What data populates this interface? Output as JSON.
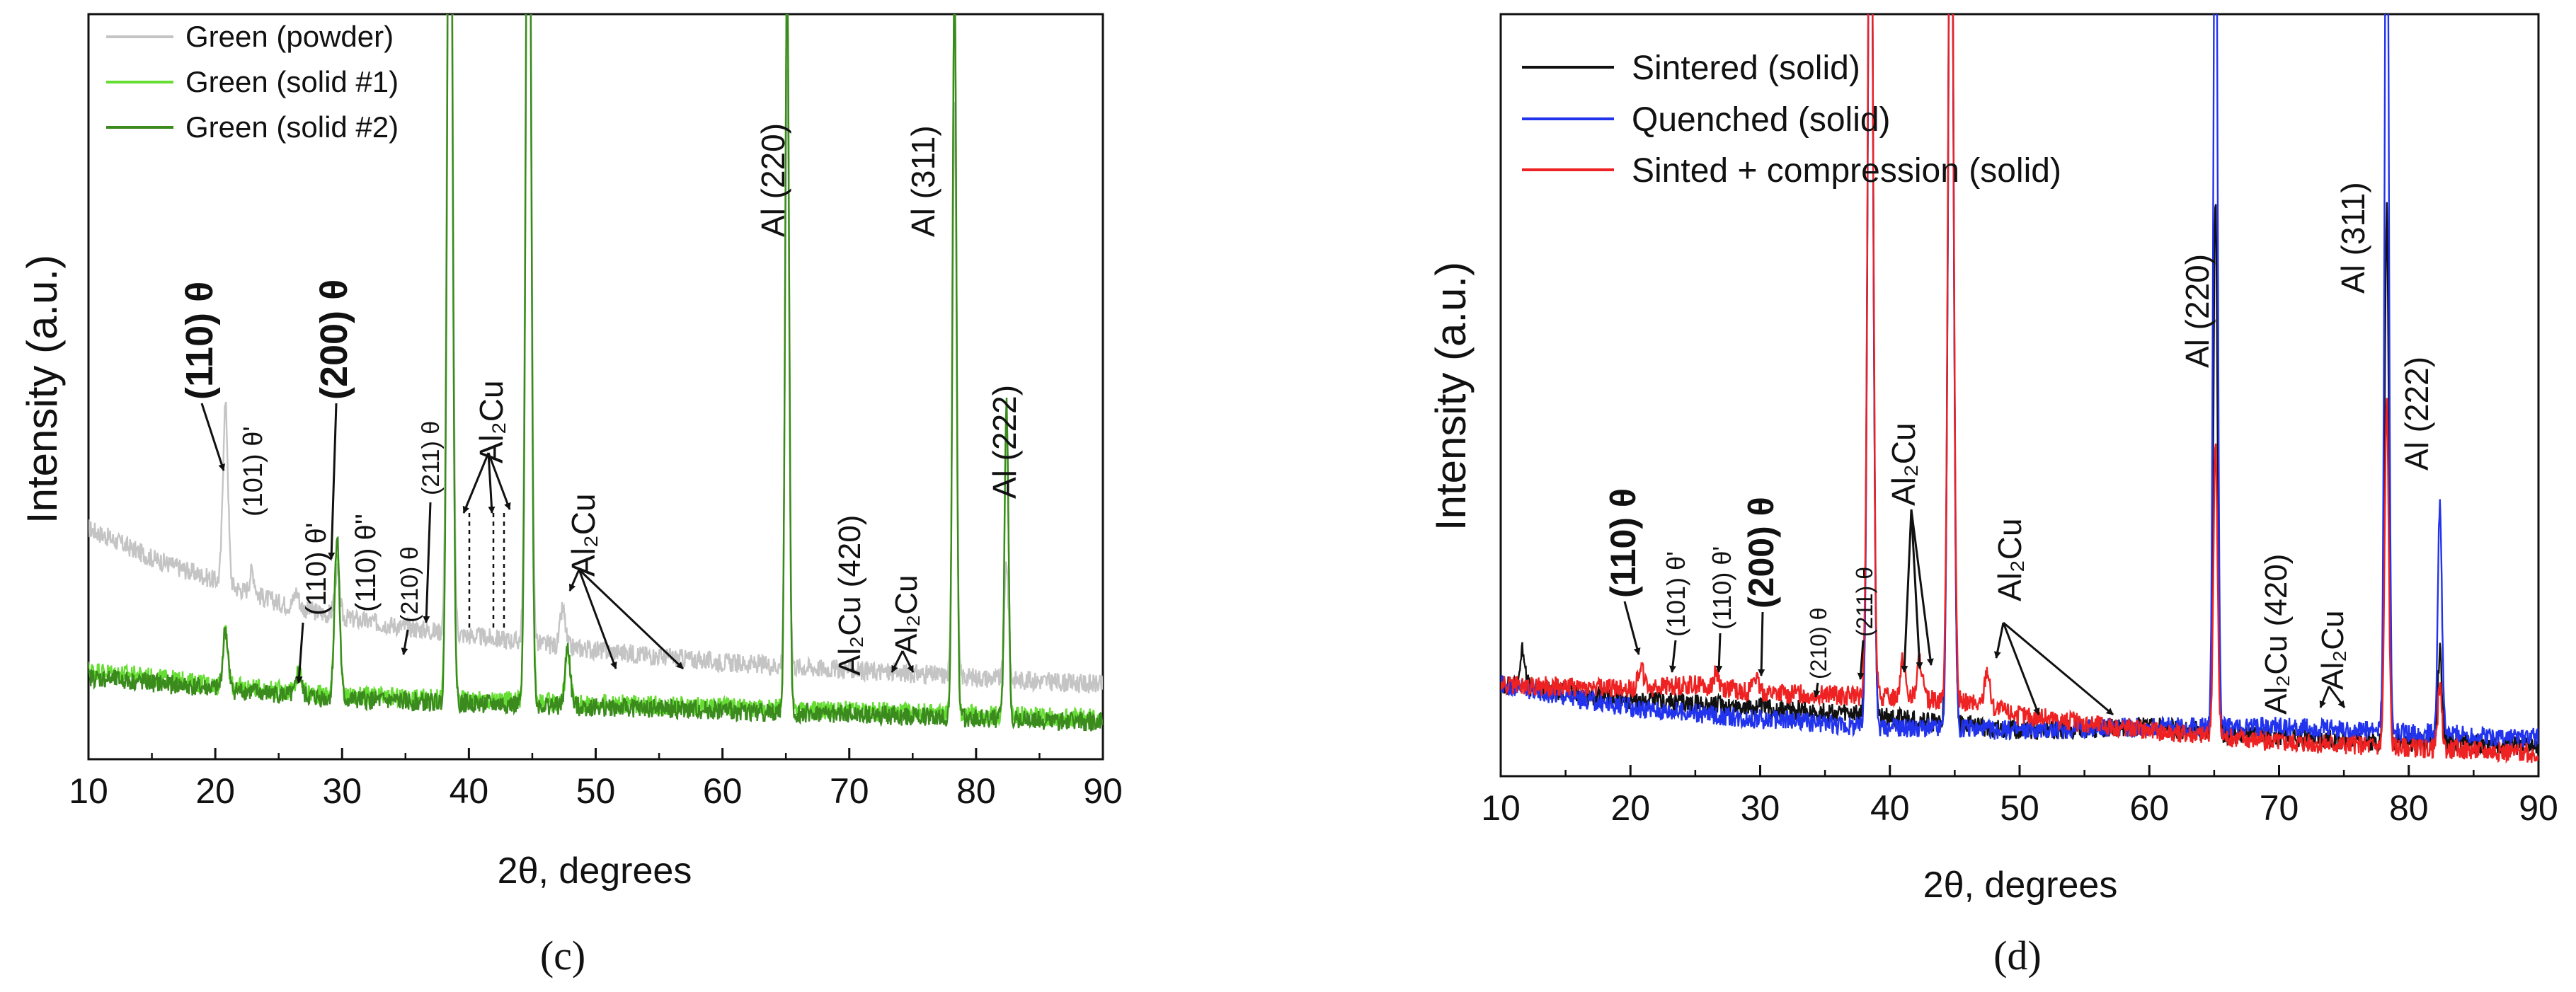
{
  "chart_data": [
    {
      "type": "line",
      "panel_label": "(c)",
      "xlabel": "2θ, degrees",
      "ylabel": "Intensity (a.u.)",
      "xlim": [
        10,
        90
      ],
      "ylim": [
        0,
        100
      ],
      "xticks": [
        10,
        20,
        30,
        40,
        50,
        60,
        70,
        80,
        90
      ],
      "legend_position": "top-left",
      "series": [
        {
          "name": "Green (powder)",
          "color": "#c4c4c4",
          "baseline": [
            [
              10,
              31
            ],
            [
              15,
              27
            ],
            [
              20,
              24
            ],
            [
              25,
              21
            ],
            [
              30,
              19
            ],
            [
              38,
              17
            ],
            [
              48,
              15
            ],
            [
              60,
              13
            ],
            [
              75,
              11.5
            ],
            [
              90,
              10
            ]
          ],
          "peaks": [
            [
              20.8,
              24
            ],
            [
              22.9,
              3
            ],
            [
              26.4,
              2
            ],
            [
              29.6,
              6
            ],
            [
              38.5,
              140
            ],
            [
              44.7,
              140
            ],
            [
              47.4,
              5
            ],
            [
              65.1,
              80
            ],
            [
              78.3,
              78
            ],
            [
              82.4,
              16
            ]
          ]
        },
        {
          "name": "Green (solid #1)",
          "color": "#66dd33",
          "baseline": [
            [
              10,
              12
            ],
            [
              20,
              10
            ],
            [
              30,
              8.5
            ],
            [
              40,
              8
            ],
            [
              60,
              7
            ],
            [
              90,
              5.5
            ]
          ],
          "peaks": [
            [
              20.8,
              7
            ],
            [
              26.6,
              3
            ],
            [
              29.6,
              20
            ],
            [
              38.5,
              140
            ],
            [
              44.7,
              140
            ],
            [
              47.8,
              7
            ],
            [
              65.1,
              100
            ],
            [
              78.3,
              100
            ],
            [
              82.4,
              40
            ]
          ]
        },
        {
          "name": "Green (solid #2)",
          "color": "#3b8a1e",
          "baseline": [
            [
              10,
              11
            ],
            [
              20,
              9.5
            ],
            [
              30,
              8
            ],
            [
              40,
              7.5
            ],
            [
              60,
              6.5
            ],
            [
              90,
              5
            ]
          ],
          "peaks": [
            [
              20.8,
              8
            ],
            [
              26.6,
              3
            ],
            [
              29.6,
              22
            ],
            [
              38.5,
              140
            ],
            [
              44.7,
              140
            ],
            [
              47.8,
              8
            ],
            [
              65.1,
              100
            ],
            [
              78.3,
              100
            ],
            [
              82.4,
              42
            ]
          ]
        }
      ],
      "annotations": {
        "a110": "(110) θ",
        "a101": "(101) θ'",
        "a200": "(200) θ",
        "a110b": "(110) θ'",
        "a110c": "(110) θ''",
        "a210": "(210) θ",
        "a211": "(211) θ",
        "al2cu_a": "Al₂Cu",
        "al2cu_b": "Al₂Cu",
        "al220": "Al (220)",
        "al311": "Al (311)",
        "al222": "Al (222)",
        "al2cu420": "Al₂Cu (420)",
        "al2cu_c": "Al₂Cu"
      }
    },
    {
      "type": "line",
      "panel_label": "(d)",
      "xlabel": "2θ, degrees",
      "ylabel": "Intensity (a.u.)",
      "xlim": [
        10,
        90
      ],
      "ylim": [
        0,
        100
      ],
      "xticks": [
        10,
        20,
        30,
        40,
        50,
        60,
        70,
        80,
        90
      ],
      "legend_position": "top-left",
      "series": [
        {
          "name": "Sintered (solid)",
          "color": "#111111",
          "baseline": [
            [
              10,
              12
            ],
            [
              20,
              10
            ],
            [
              30,
              9
            ],
            [
              38,
              8
            ],
            [
              50,
              6
            ],
            [
              60,
              6.5
            ],
            [
              70,
              5
            ],
            [
              90,
              4
            ]
          ],
          "peaks": [
            [
              11.7,
              5
            ],
            [
              38.5,
              130
            ],
            [
              44.7,
              130
            ],
            [
              65.1,
              70
            ],
            [
              78.3,
              70
            ],
            [
              82.4,
              12
            ]
          ]
        },
        {
          "name": "Quenched (solid)",
          "color": "#2233ee",
          "baseline": [
            [
              10,
              12
            ],
            [
              20,
              9
            ],
            [
              30,
              7.5
            ],
            [
              38,
              6.5
            ],
            [
              50,
              6
            ],
            [
              60,
              6.5
            ],
            [
              70,
              6.5
            ],
            [
              90,
              5
            ]
          ],
          "peaks": [
            [
              38.5,
              130
            ],
            [
              44.7,
              130
            ],
            [
              65.1,
              130
            ],
            [
              78.3,
              130
            ],
            [
              82.4,
              30
            ]
          ]
        },
        {
          "name": "Sinted + compression (solid)",
          "color": "#ee2222",
          "baseline": [
            [
              10,
              12
            ],
            [
              20,
              11.5
            ],
            [
              25,
              12
            ],
            [
              30,
              11
            ],
            [
              38,
              10.5
            ],
            [
              45,
              10
            ],
            [
              50,
              8
            ],
            [
              60,
              6
            ],
            [
              70,
              4.5
            ],
            [
              90,
              3
            ]
          ],
          "peaks": [
            [
              20.8,
              3
            ],
            [
              26.6,
              2
            ],
            [
              29.6,
              2
            ],
            [
              38.5,
              130
            ],
            [
              41,
              5
            ],
            [
              42.3,
              5
            ],
            [
              44.7,
              130
            ],
            [
              47.5,
              5
            ],
            [
              65.1,
              38
            ],
            [
              78.3,
              45
            ],
            [
              82.4,
              8
            ]
          ]
        }
      ],
      "annotations": {
        "a110": "(110) θ",
        "a101": "(101) θ'",
        "a110b": "(110) θ'",
        "a200": "(200) θ",
        "a210": "(210) θ",
        "a211": "(211) θ",
        "al2cu_a": "Al₂Cu",
        "al2cu_b": "Al₂Cu",
        "al220": "Al (220)",
        "al311": "Al (311)",
        "al222": "Al (222)",
        "al2cu420": "Al₂Cu (420)",
        "al2cu_c": "Al₂Cu"
      }
    }
  ]
}
